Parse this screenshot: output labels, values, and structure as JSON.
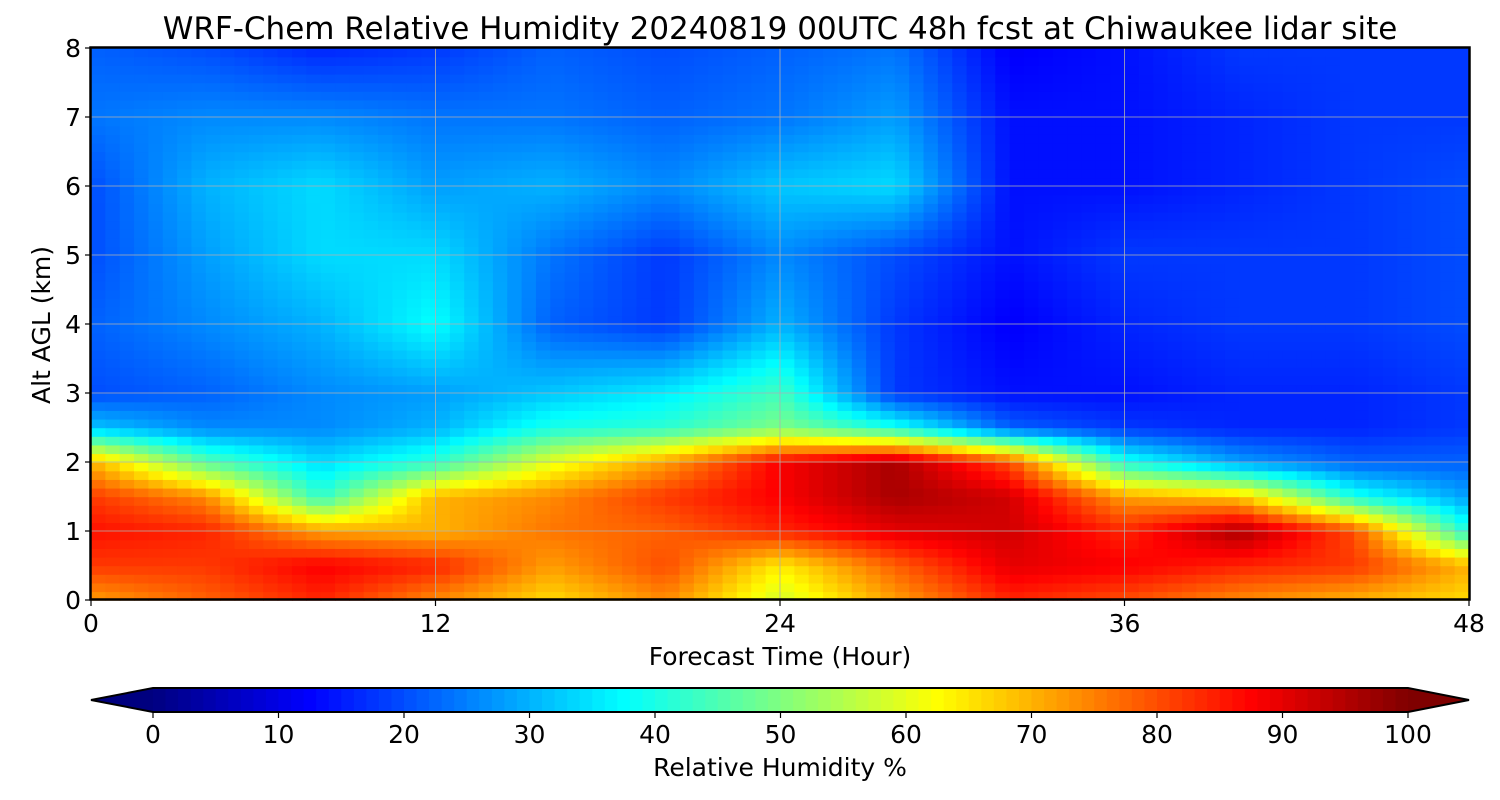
{
  "chart_data": {
    "type": "heatmap",
    "title": "WRF-Chem Relative Humidity 20240819 00UTC 48h fcst at Chiwaukee lidar site",
    "xlabel": "Forecast Time (Hour)",
    "ylabel": "Alt AGL (km)",
    "xlim": [
      0,
      48
    ],
    "ylim": [
      0,
      8
    ],
    "x_ticks": [
      "0",
      "12",
      "24",
      "36",
      "48"
    ],
    "y_ticks": [
      "0",
      "1",
      "2",
      "3",
      "4",
      "5",
      "6",
      "7",
      "8"
    ],
    "grid": true,
    "colormap": "jet",
    "colorbar": {
      "label": "Relative Humidity %",
      "range": [
        0,
        100
      ],
      "ticks": [
        "0",
        "10",
        "20",
        "30",
        "40",
        "50",
        "60",
        "70",
        "80",
        "90",
        "100"
      ],
      "extend": "both",
      "under_color": "#00007f",
      "over_color": "#7f0000"
    },
    "x": [
      0,
      4,
      8,
      12,
      16,
      20,
      24,
      28,
      32,
      36,
      40,
      44,
      48
    ],
    "y": [
      0,
      0.5,
      1,
      1.5,
      2,
      2.5,
      3,
      4,
      5,
      6,
      7,
      8
    ],
    "z": [
      [
        72,
        78,
        84,
        74,
        66,
        74,
        58,
        72,
        84,
        80,
        74,
        70,
        66
      ],
      [
        82,
        82,
        88,
        84,
        72,
        80,
        64,
        78,
        90,
        88,
        84,
        82,
        70
      ],
      [
        86,
        84,
        72,
        70,
        76,
        78,
        84,
        90,
        92,
        84,
        96,
        80,
        40
      ],
      [
        82,
        74,
        42,
        70,
        74,
        82,
        88,
        96,
        92,
        72,
        68,
        40,
        28
      ],
      [
        70,
        46,
        34,
        42,
        60,
        72,
        88,
        96,
        80,
        40,
        28,
        22,
        22
      ],
      [
        32,
        26,
        26,
        30,
        40,
        42,
        50,
        40,
        22,
        18,
        16,
        16,
        18
      ],
      [
        20,
        22,
        26,
        28,
        32,
        36,
        44,
        18,
        14,
        14,
        16,
        16,
        18
      ],
      [
        22,
        26,
        30,
        38,
        22,
        18,
        30,
        18,
        12,
        16,
        18,
        18,
        20
      ],
      [
        20,
        28,
        34,
        34,
        24,
        18,
        26,
        20,
        14,
        18,
        18,
        18,
        20
      ],
      [
        20,
        30,
        34,
        28,
        30,
        26,
        32,
        34,
        14,
        14,
        16,
        18,
        20
      ],
      [
        24,
        26,
        26,
        24,
        24,
        22,
        24,
        28,
        14,
        14,
        16,
        18,
        18
      ],
      [
        22,
        20,
        16,
        18,
        22,
        20,
        22,
        24,
        12,
        14,
        18,
        18,
        18
      ]
    ]
  }
}
